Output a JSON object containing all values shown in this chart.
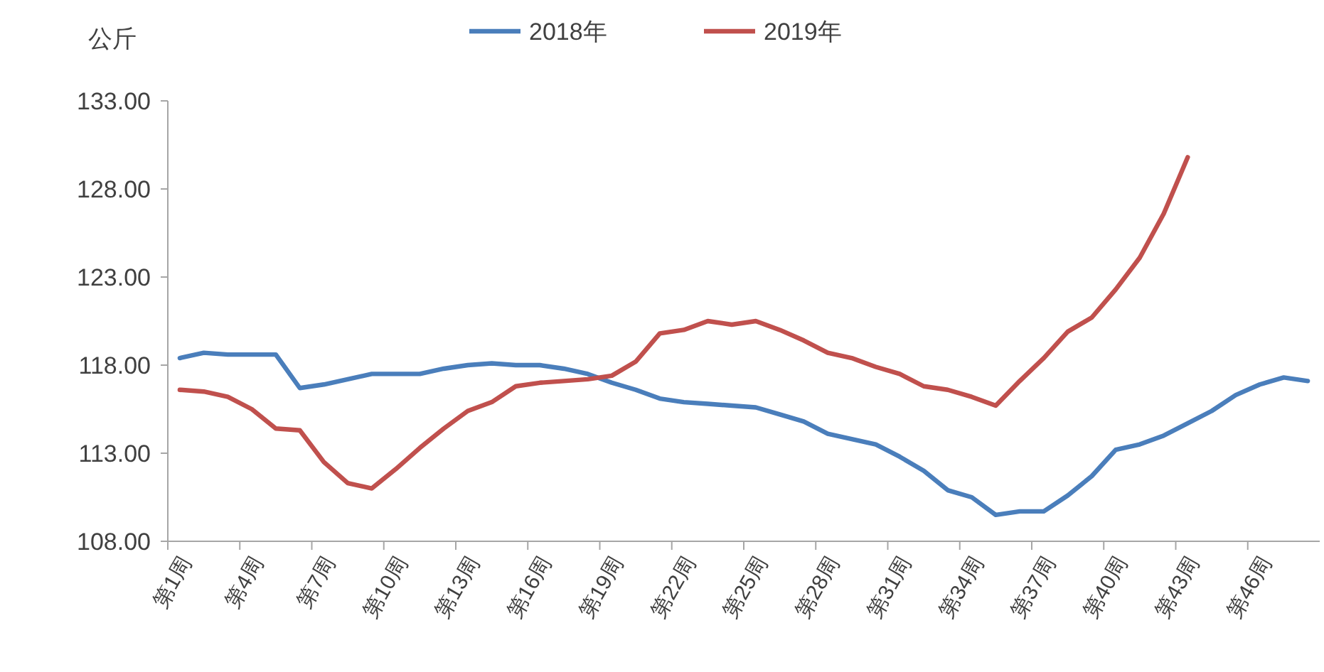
{
  "chart_data": {
    "type": "line",
    "ylabel": "公斤",
    "categories": [
      "第1周",
      null,
      null,
      "第4周",
      null,
      null,
      "第7周",
      null,
      null,
      "第10周",
      null,
      null,
      "第13周",
      null,
      null,
      "第16周",
      null,
      null,
      "第19周",
      null,
      null,
      "第22周",
      null,
      null,
      "第25周",
      null,
      null,
      "第28周",
      null,
      null,
      "第31周",
      null,
      null,
      "第34周",
      null,
      null,
      "第37周",
      null,
      null,
      "第40周",
      null,
      null,
      "第43周",
      null,
      null,
      "第46周",
      null,
      null
    ],
    "series": [
      {
        "name": "2018年",
        "color": "#4a7ebb",
        "values": [
          118.4,
          118.7,
          118.6,
          118.6,
          118.6,
          116.7,
          116.9,
          117.2,
          117.5,
          117.5,
          117.5,
          117.8,
          118.0,
          118.1,
          118.0,
          118.0,
          117.8,
          117.5,
          117.0,
          116.6,
          116.1,
          115.9,
          115.8,
          115.7,
          115.6,
          115.2,
          114.8,
          114.1,
          113.8,
          113.5,
          112.8,
          112.0,
          110.9,
          110.5,
          109.5,
          109.7,
          109.7,
          110.6,
          111.7,
          113.2,
          113.5,
          114.0,
          114.7,
          115.4,
          116.3,
          116.9,
          117.3,
          117.1
        ]
      },
      {
        "name": "2019年",
        "color": "#c0504d",
        "values": [
          116.6,
          116.5,
          116.2,
          115.5,
          114.4,
          114.3,
          112.5,
          111.3,
          111.0,
          112.1,
          113.3,
          114.4,
          115.4,
          115.9,
          116.8,
          117.0,
          117.1,
          117.2,
          117.4,
          118.2,
          119.8,
          120.0,
          120.5,
          120.3,
          120.5,
          120.0,
          119.4,
          118.7,
          118.4,
          117.9,
          117.5,
          116.8,
          116.6,
          116.2,
          115.7,
          117.1,
          118.4,
          119.9,
          120.7,
          122.3,
          124.1,
          126.6,
          129.8,
          null,
          null,
          null,
          null,
          null
        ]
      }
    ],
    "ylim": [
      108,
      133
    ],
    "yticks": [
      {
        "value": 108,
        "label": "108.00"
      },
      {
        "value": 113,
        "label": "113.00"
      },
      {
        "value": 118,
        "label": "118.00"
      },
      {
        "value": 123,
        "label": "123.00"
      },
      {
        "value": 128,
        "label": "128.00"
      },
      {
        "value": 133,
        "label": "133.00"
      }
    ],
    "legend": "top",
    "marker": "none",
    "line_style": "solid"
  }
}
